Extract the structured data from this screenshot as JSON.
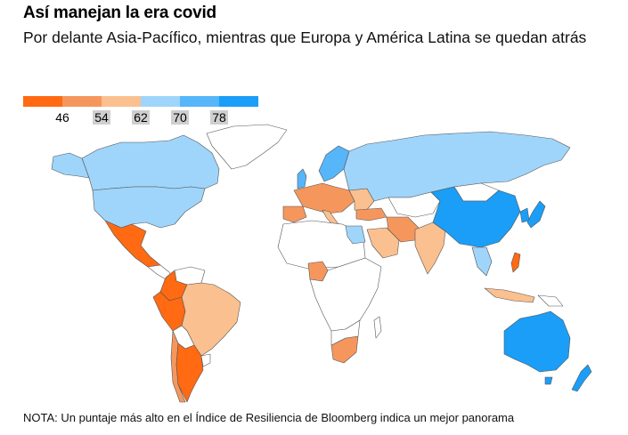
{
  "header": {
    "title": "Así manejan la era covid",
    "subtitle": "Por delante Asia-Pacífico, mientras que Europa y América Latina se quedan atrás"
  },
  "legend": {
    "colors": [
      "#ff6a13",
      "#f5975d",
      "#fbc08f",
      "#9fd5fb",
      "#56b6f9",
      "#1a9ef7"
    ],
    "ticks": [
      {
        "label": "46",
        "boxed": false
      },
      {
        "label": "54",
        "boxed": true
      },
      {
        "label": "62",
        "boxed": true
      },
      {
        "label": "70",
        "boxed": true
      },
      {
        "label": "78",
        "boxed": true
      }
    ]
  },
  "map": {
    "nodata_color": "#ffffff",
    "regions": [
      {
        "id": "canada",
        "score_band": 70
      },
      {
        "id": "usa",
        "score_band": 70
      },
      {
        "id": "mexico",
        "score_band": 46
      },
      {
        "id": "colombia",
        "score_band": 46
      },
      {
        "id": "peru",
        "score_band": 46
      },
      {
        "id": "brazil",
        "score_band": 62
      },
      {
        "id": "argentina",
        "score_band": 46
      },
      {
        "id": "chile",
        "score_band": 54
      },
      {
        "id": "china",
        "score_band": 78
      },
      {
        "id": "russia",
        "score_band": 70
      },
      {
        "id": "india",
        "score_band": 62
      },
      {
        "id": "japan",
        "score_band": 78
      },
      {
        "id": "australia",
        "score_band": 78
      },
      {
        "id": "new-zealand",
        "score_band": 78
      },
      {
        "id": "south-africa",
        "score_band": 54
      },
      {
        "id": "nigeria",
        "score_band": 54
      },
      {
        "id": "saudi-arabia",
        "score_band": 62
      },
      {
        "id": "iran",
        "score_band": 54
      }
    ]
  },
  "footer": {
    "note": "NOTA: Un puntaje más alto en el Índice de Resiliencia de Bloomberg indica un mejor panorama"
  }
}
